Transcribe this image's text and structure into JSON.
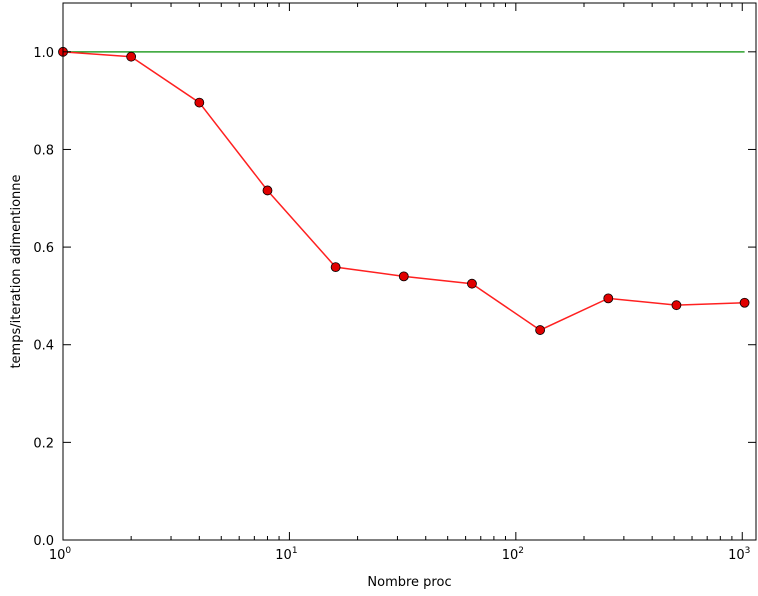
{
  "chart_data": {
    "type": "line",
    "xlabel": "Nombre proc",
    "ylabel": "temps/iteration adimentionne",
    "xscale": "log",
    "xlim": [
      1,
      1150
    ],
    "ylim": [
      0,
      1.1
    ],
    "grid": false,
    "x_ticks": [
      {
        "value": 1,
        "base": "10",
        "exp": "0"
      },
      {
        "value": 10,
        "base": "10",
        "exp": "1"
      },
      {
        "value": 100,
        "base": "10",
        "exp": "2"
      },
      {
        "value": 1000,
        "base": "10",
        "exp": "3"
      }
    ],
    "y_ticks": [
      {
        "value": 0.0,
        "label": "0.0"
      },
      {
        "value": 0.2,
        "label": "0.2"
      },
      {
        "value": 0.4,
        "label": "0.4"
      },
      {
        "value": 0.6,
        "label": "0.6"
      },
      {
        "value": 0.8,
        "label": "0.8"
      },
      {
        "value": 1.0,
        "label": "1.0"
      }
    ],
    "series": [
      {
        "color": "#2ca02c",
        "marker": "none",
        "x": [
          1,
          1024
        ],
        "y": [
          1.0,
          1.0
        ]
      },
      {
        "color": "#ff2020",
        "marker": "circle",
        "marker_fill": "#e00000",
        "x": [
          1,
          2,
          4,
          8,
          16,
          32,
          64,
          128,
          256,
          512,
          1024
        ],
        "y": [
          1.0,
          0.99,
          0.896,
          0.716,
          0.559,
          0.54,
          0.525,
          0.43,
          0.495,
          0.481,
          0.486
        ]
      }
    ]
  }
}
